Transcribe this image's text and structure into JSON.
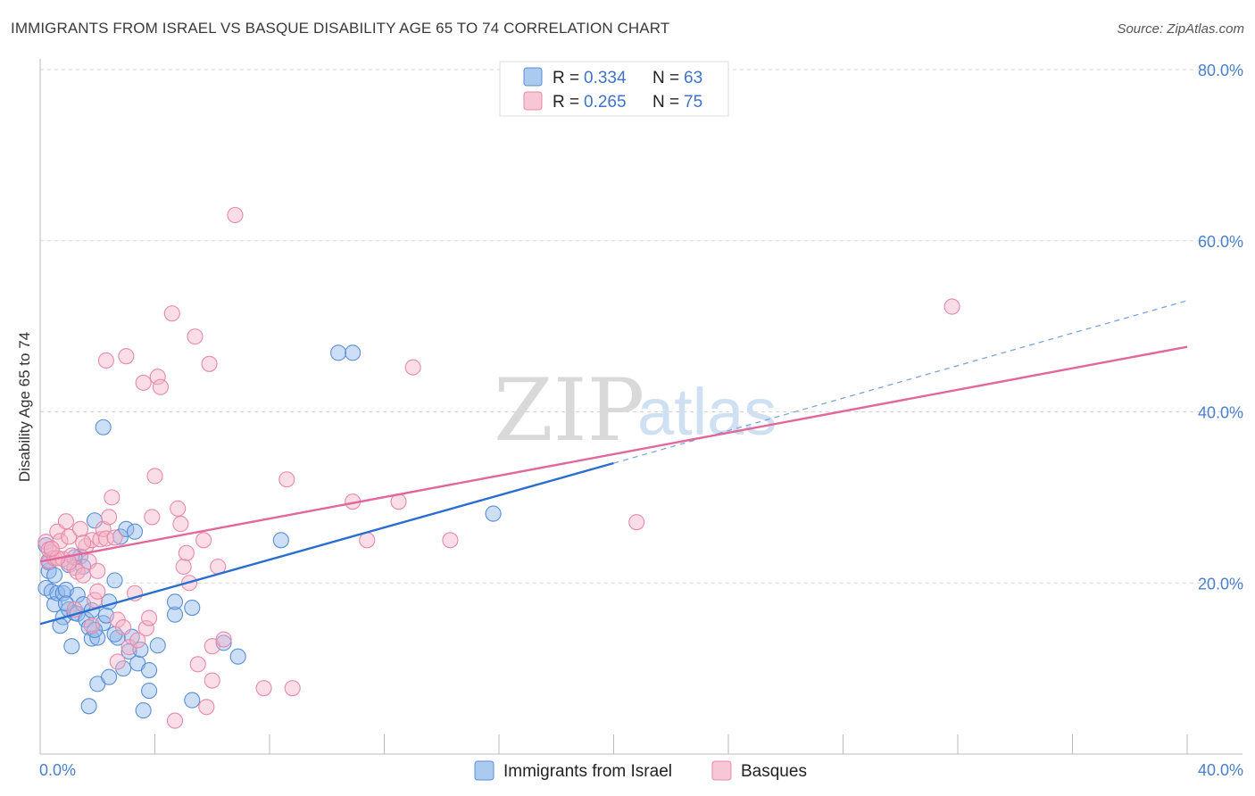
{
  "title": "IMMIGRANTS FROM ISRAEL VS BASQUE DISABILITY AGE 65 TO 74 CORRELATION CHART",
  "source": "Source: ZipAtlas.com",
  "watermark": {
    "zip": "ZIP",
    "atlas": "atlas"
  },
  "legend": {
    "r_label": "R =",
    "n_label": "N =",
    "items": [
      {
        "r": "0.334",
        "n": "63",
        "color": "#8fb8ea"
      },
      {
        "r": "0.265",
        "n": "75",
        "color": "#f5b4c8"
      }
    ]
  },
  "bottom_legend": [
    {
      "label": "Immigrants from Israel",
      "color": "#8fb8ea"
    },
    {
      "label": "Basques",
      "color": "#f5b4c8"
    }
  ],
  "chart_data": {
    "type": "scatter",
    "title": "IMMIGRANTS FROM ISRAEL VS BASQUE DISABILITY AGE 65 TO 74 CORRELATION CHART",
    "xlabel": "",
    "ylabel": "Disability Age 65 to 74",
    "xlim": [
      0,
      40
    ],
    "ylim": [
      0,
      80
    ],
    "x_tick_labels": [
      "0.0%",
      "40.0%"
    ],
    "y_ticks": [
      20,
      40,
      60,
      80
    ],
    "y_tick_labels": [
      "20.0%",
      "40.0%",
      "60.0%",
      "80.0%"
    ],
    "series": [
      {
        "name": "Immigrants from Israel",
        "color": "#8fb8ea",
        "edge": "#5a8fd6",
        "line_color": "#2a6fcf",
        "r": 0.334,
        "n": 63,
        "trend": {
          "x0": 0,
          "y0": 15.2,
          "x1": 20,
          "y1": 34.0,
          "dash_to_x": 40,
          "dash_to_y": 53.0
        },
        "points": [
          [
            0.2,
            24.4
          ],
          [
            0.3,
            22.4
          ],
          [
            0.2,
            19.4
          ],
          [
            0.3,
            21.4
          ],
          [
            0.4,
            19.0
          ],
          [
            0.5,
            17.5
          ],
          [
            0.6,
            18.8
          ],
          [
            0.8,
            16.0
          ],
          [
            0.8,
            18.8
          ],
          [
            0.7,
            15.0
          ],
          [
            0.9,
            19.2
          ],
          [
            1.0,
            16.9
          ],
          [
            1.0,
            22.1
          ],
          [
            1.2,
            16.5
          ],
          [
            1.1,
            12.6
          ],
          [
            1.3,
            18.6
          ],
          [
            1.3,
            16.4
          ],
          [
            1.4,
            23.1
          ],
          [
            1.5,
            17.5
          ],
          [
            1.5,
            21.9
          ],
          [
            1.6,
            15.7
          ],
          [
            1.7,
            14.8
          ],
          [
            1.8,
            13.5
          ],
          [
            1.8,
            16.8
          ],
          [
            1.9,
            27.3
          ],
          [
            2.0,
            13.6
          ],
          [
            2.0,
            8.2
          ],
          [
            2.2,
            15.3
          ],
          [
            2.3,
            16.2
          ],
          [
            2.4,
            17.8
          ],
          [
            2.4,
            9.0
          ],
          [
            2.6,
            20.3
          ],
          [
            2.7,
            13.6
          ],
          [
            2.8,
            25.4
          ],
          [
            2.9,
            10.0
          ],
          [
            3.0,
            26.3
          ],
          [
            3.1,
            12.0
          ],
          [
            3.2,
            13.7
          ],
          [
            3.3,
            26.0
          ],
          [
            3.4,
            10.6
          ],
          [
            3.6,
            5.1
          ],
          [
            3.8,
            9.8
          ],
          [
            3.8,
            7.4
          ],
          [
            4.1,
            12.7
          ],
          [
            4.7,
            16.3
          ],
          [
            4.7,
            17.8
          ],
          [
            5.3,
            17.1
          ],
          [
            5.3,
            6.3
          ],
          [
            1.7,
            5.6
          ],
          [
            2.2,
            38.2
          ],
          [
            6.4,
            13.0
          ],
          [
            6.9,
            11.4
          ],
          [
            8.4,
            25.0
          ],
          [
            10.4,
            46.9
          ],
          [
            10.9,
            46.9
          ],
          [
            15.8,
            28.1
          ],
          [
            0.3,
            22.6
          ],
          [
            0.5,
            20.9
          ],
          [
            1.9,
            14.5
          ],
          [
            2.6,
            14.0
          ],
          [
            0.9,
            17.6
          ],
          [
            3.5,
            12.2
          ],
          [
            1.2,
            23.0
          ]
        ]
      },
      {
        "name": "Basques",
        "color": "#f5b4c8",
        "edge": "#e88aa8",
        "line_color": "#e2679a",
        "r": 0.265,
        "n": 75,
        "trend": {
          "x0": 0,
          "y0": 22.5,
          "x1": 40,
          "y1": 47.6
        },
        "points": [
          [
            0.2,
            24.8
          ],
          [
            0.3,
            22.5
          ],
          [
            0.4,
            23.6
          ],
          [
            0.5,
            22.9
          ],
          [
            0.6,
            26.0
          ],
          [
            0.7,
            24.9
          ],
          [
            0.8,
            22.8
          ],
          [
            0.9,
            27.2
          ],
          [
            1.0,
            25.4
          ],
          [
            1.1,
            23.2
          ],
          [
            1.2,
            21.8
          ],
          [
            1.3,
            21.3
          ],
          [
            1.4,
            26.3
          ],
          [
            1.5,
            20.9
          ],
          [
            1.6,
            24.3
          ],
          [
            1.7,
            22.5
          ],
          [
            1.8,
            25.0
          ],
          [
            1.8,
            15.0
          ],
          [
            1.9,
            18.0
          ],
          [
            2.0,
            21.4
          ],
          [
            2.1,
            25.1
          ],
          [
            2.2,
            26.3
          ],
          [
            2.3,
            25.2
          ],
          [
            2.3,
            46.0
          ],
          [
            2.4,
            27.7
          ],
          [
            2.5,
            30.0
          ],
          [
            2.6,
            25.3
          ],
          [
            2.7,
            10.8
          ],
          [
            2.7,
            15.7
          ],
          [
            2.9,
            14.8
          ],
          [
            3.0,
            46.5
          ],
          [
            3.1,
            12.5
          ],
          [
            3.3,
            18.8
          ],
          [
            3.4,
            13.3
          ],
          [
            3.6,
            43.4
          ],
          [
            3.7,
            14.7
          ],
          [
            3.9,
            27.7
          ],
          [
            4.0,
            32.5
          ],
          [
            4.1,
            44.1
          ],
          [
            4.2,
            42.9
          ],
          [
            4.6,
            51.5
          ],
          [
            4.7,
            3.9
          ],
          [
            4.8,
            28.7
          ],
          [
            4.9,
            26.9
          ],
          [
            5.0,
            21.9
          ],
          [
            5.1,
            23.5
          ],
          [
            5.2,
            20.0
          ],
          [
            5.4,
            48.8
          ],
          [
            5.5,
            10.5
          ],
          [
            5.7,
            25.0
          ],
          [
            5.8,
            5.5
          ],
          [
            5.9,
            45.6
          ],
          [
            6.0,
            12.6
          ],
          [
            6.0,
            8.6
          ],
          [
            6.2,
            21.9
          ],
          [
            6.4,
            13.4
          ],
          [
            6.8,
            63.0
          ],
          [
            7.8,
            7.7
          ],
          [
            8.6,
            32.1
          ],
          [
            8.8,
            7.7
          ],
          [
            10.9,
            29.5
          ],
          [
            11.4,
            25.0
          ],
          [
            12.5,
            29.5
          ],
          [
            13.0,
            45.2
          ],
          [
            14.3,
            25.0
          ],
          [
            20.8,
            27.1
          ],
          [
            31.8,
            52.3
          ],
          [
            0.3,
            23.9
          ],
          [
            1.0,
            22.4
          ],
          [
            1.5,
            24.7
          ],
          [
            0.6,
            22.9
          ],
          [
            2.0,
            19.0
          ],
          [
            1.2,
            16.9
          ],
          [
            3.8,
            15.9
          ],
          [
            0.4,
            24.0
          ]
        ]
      }
    ]
  }
}
